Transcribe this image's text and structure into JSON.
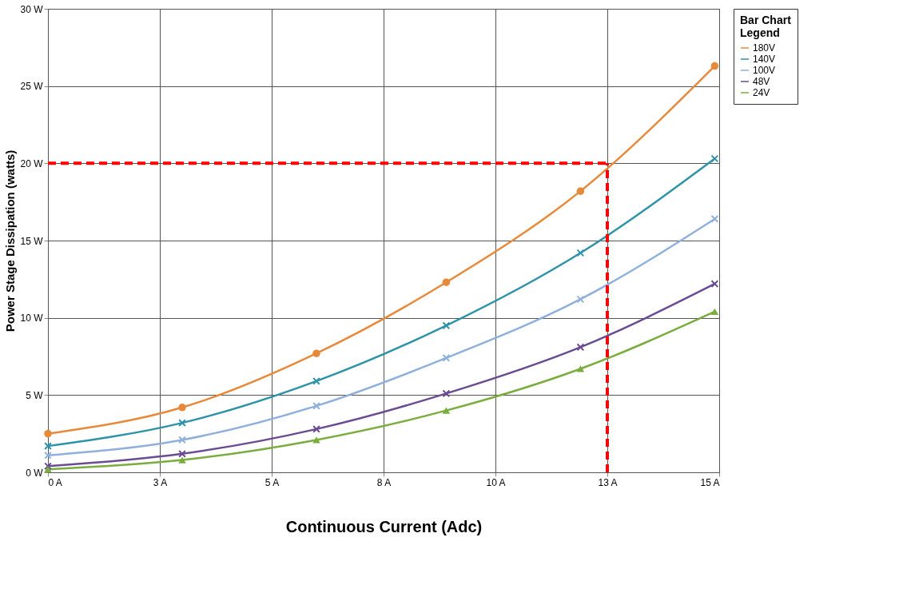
{
  "chart_data": {
    "type": "line",
    "xlabel": "Continuous Current (Adc)",
    "ylabel": "Power Stage Dissipation (watts)",
    "legend_title": "Bar Chart Legend",
    "legend": "right",
    "grid": true,
    "x": [
      0,
      3,
      6,
      8.9,
      11.9,
      14.9
    ],
    "xlim": [
      0,
      15
    ],
    "xticks": [
      {
        "value": 0,
        "label": "0 A"
      },
      {
        "value": 2.5,
        "label": "3 A"
      },
      {
        "value": 5,
        "label": "5 A"
      },
      {
        "value": 7.5,
        "label": "8 A"
      },
      {
        "value": 10,
        "label": "10 A"
      },
      {
        "value": 12.5,
        "label": "13 A"
      },
      {
        "value": 15,
        "label": "15 A"
      }
    ],
    "ylim": [
      0,
      30
    ],
    "yticks": [
      {
        "value": 0,
        "label": "0 W"
      },
      {
        "value": 5,
        "label": "5 W"
      },
      {
        "value": 10,
        "label": "10 W"
      },
      {
        "value": 15,
        "label": "15 W"
      },
      {
        "value": 20,
        "label": "20 W"
      },
      {
        "value": 25,
        "label": "25 W"
      },
      {
        "value": 30,
        "label": "30 W"
      }
    ],
    "series": [
      {
        "name": "180V",
        "color": "#e8893a",
        "marker": "circle",
        "values": [
          2.5,
          4.2,
          7.7,
          12.3,
          18.2,
          26.3
        ]
      },
      {
        "name": "140V",
        "color": "#2e93a8",
        "marker": "cross",
        "values": [
          1.7,
          3.2,
          5.9,
          9.5,
          14.2,
          20.3
        ]
      },
      {
        "name": "100V",
        "color": "#8fb0dc",
        "marker": "cross",
        "values": [
          1.1,
          2.1,
          4.3,
          7.4,
          11.2,
          16.4
        ]
      },
      {
        "name": "48V",
        "color": "#6a4c93",
        "marker": "cross",
        "values": [
          0.4,
          1.2,
          2.8,
          5.1,
          8.1,
          12.2
        ]
      },
      {
        "name": "24V",
        "color": "#7aac3e",
        "marker": "triangle",
        "values": [
          0.2,
          0.8,
          2.1,
          4.0,
          6.7,
          10.4
        ]
      }
    ],
    "ref_lines": [
      {
        "axis": "y",
        "value": 20,
        "color": "#ff0000",
        "line_style": "dashed"
      },
      {
        "axis": "x",
        "value": 12.5,
        "color": "#ff0000",
        "line_style": "dashed"
      }
    ]
  }
}
